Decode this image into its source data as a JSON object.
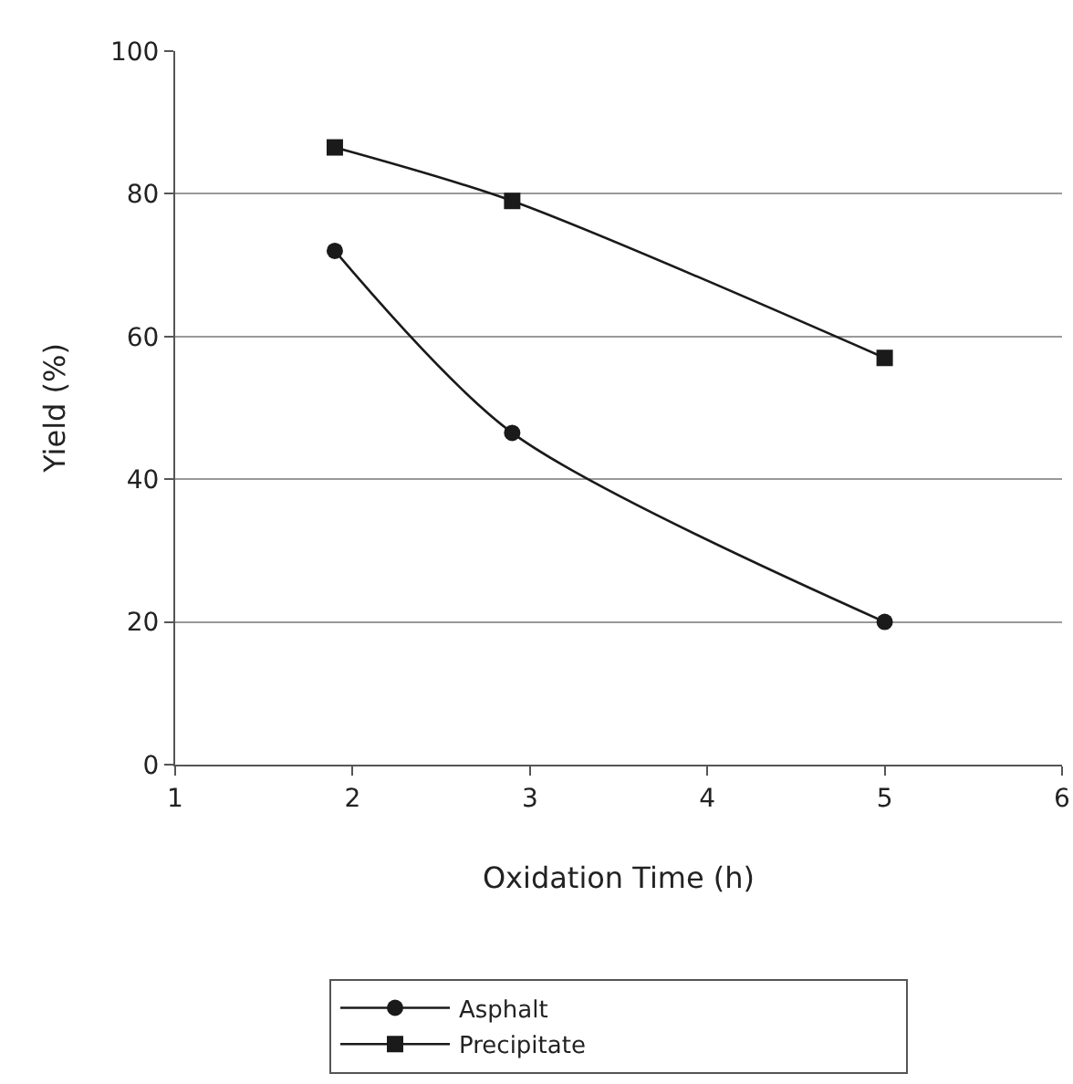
{
  "chart_data": {
    "type": "line",
    "xlabel": "Oxidation Time (h)",
    "ylabel": "Yield (%)",
    "xlim": [
      1,
      6
    ],
    "xticks": [
      1,
      2,
      3,
      4,
      5,
      6
    ],
    "ylim": [
      0,
      100
    ],
    "yticks": [
      0,
      20,
      40,
      60,
      80,
      100
    ],
    "grid": "y",
    "legend": "bottom",
    "line_style": "solid",
    "series": [
      {
        "name": "Asphalt",
        "color": "#1a1a1a",
        "marker": "circle",
        "x": [
          1.9,
          2.9,
          5
        ],
        "values": [
          72,
          46.5,
          20
        ]
      },
      {
        "name": "Precipitate",
        "color": "#1a1a1a",
        "marker": "square",
        "x": [
          1.9,
          2.9,
          5
        ],
        "values": [
          86.5,
          79,
          57
        ]
      }
    ]
  }
}
